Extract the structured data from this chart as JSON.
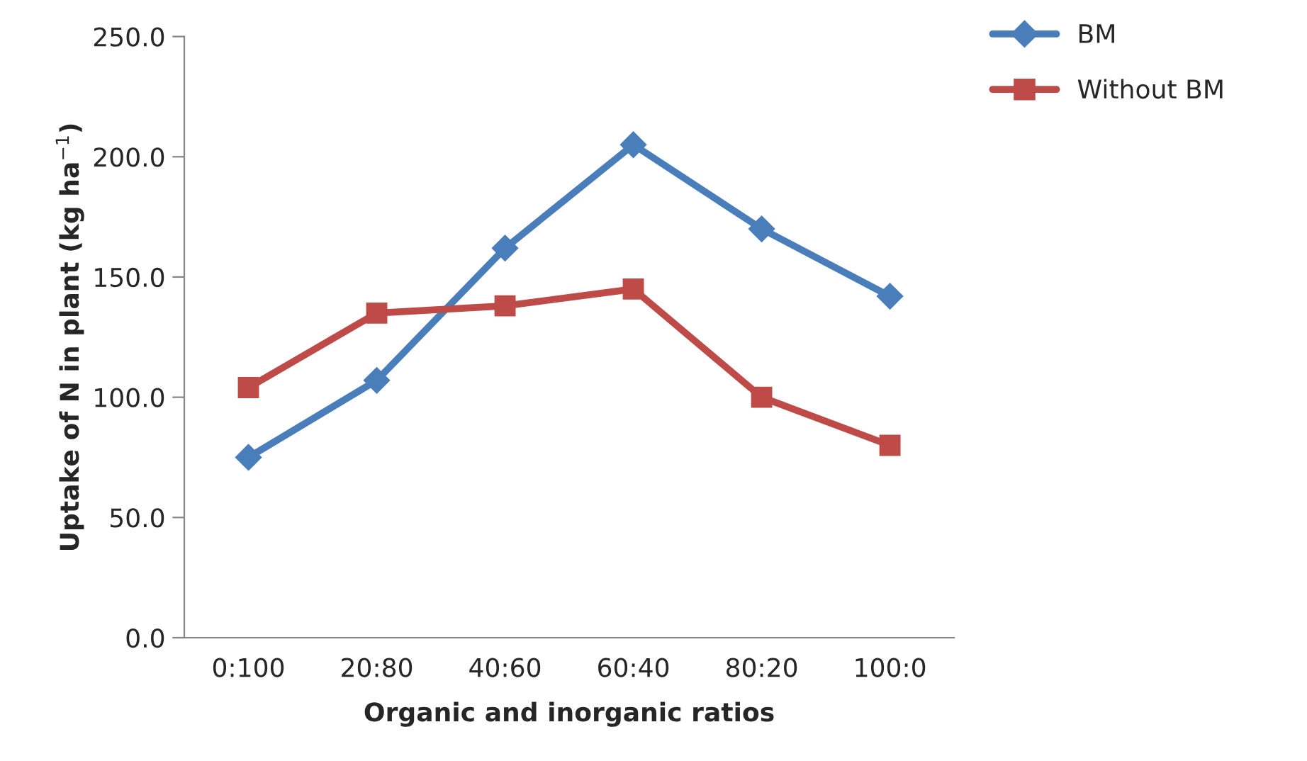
{
  "chart_data": {
    "type": "line",
    "xlabel": "Organic and inorganic ratios",
    "ylabel": "Uptake of N in plant (kg ha$^{−1}$)",
    "categories": [
      "0:100",
      "20:80",
      "40:60",
      "60:40",
      "80:20",
      "100:0"
    ],
    "series": [
      {
        "name": "BM",
        "color": "#4a7ebb",
        "marker": "diamond",
        "values": [
          75,
          107,
          162,
          205,
          170,
          142
        ]
      },
      {
        "name": "Without BM",
        "color": "#be4b48",
        "marker": "square",
        "values": [
          104,
          135,
          138,
          145,
          100,
          80
        ]
      }
    ],
    "ylim": [
      0,
      250
    ],
    "yticks": [
      {
        "value": 0,
        "label": "0.0"
      },
      {
        "value": 50,
        "label": "50.0"
      },
      {
        "value": 100,
        "label": "100.0"
      },
      {
        "value": 150,
        "label": "150.0"
      },
      {
        "value": 200,
        "label": "200.0"
      },
      {
        "value": 250,
        "label": "250.0"
      }
    ],
    "grid": false,
    "legend": "top right",
    "line_style": "solid"
  }
}
